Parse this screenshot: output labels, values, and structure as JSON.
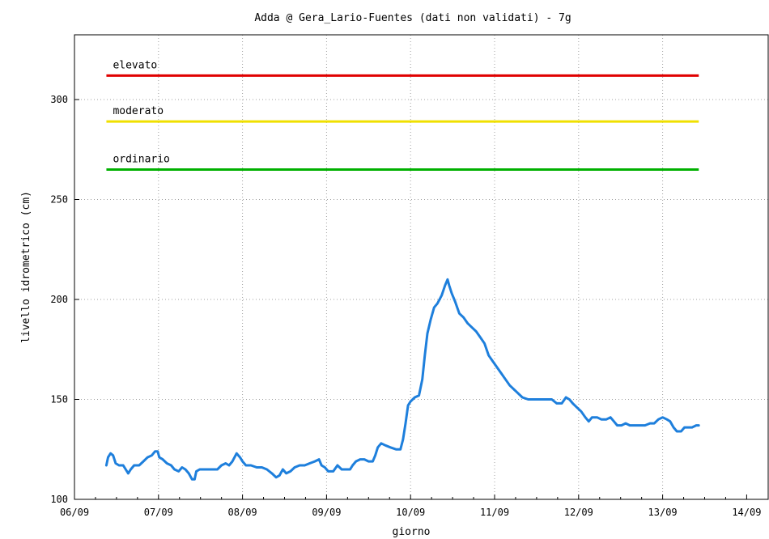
{
  "chart_data": {
    "type": "line",
    "title": "Adda @  Gera_Lario-Fuentes (dati non validati) - 7g",
    "xlabel": "giorno",
    "ylabel": "livello idrometrico (cm)",
    "xlim": [
      0,
      8
    ],
    "ylim": [
      100,
      330
    ],
    "x_ticks": [
      "06/09",
      "07/09",
      "08/09",
      "09/09",
      "10/09",
      "11/09",
      "12/09",
      "13/09",
      "14/09"
    ],
    "y_ticks": [
      100,
      150,
      200,
      250,
      300
    ],
    "grid": true,
    "thresholds": [
      {
        "name": "elevato",
        "value": 312,
        "color": "#e00000"
      },
      {
        "name": "moderato",
        "value": 289,
        "color": "#f0e000"
      },
      {
        "name": "ordinario",
        "value": 265,
        "color": "#00b000"
      }
    ],
    "threshold_span": [
      0.38,
      7.43
    ],
    "series": [
      {
        "color": "#1e7fdc",
        "points": [
          [
            0.38,
            117
          ],
          [
            0.4,
            121
          ],
          [
            0.43,
            123
          ],
          [
            0.46,
            122
          ],
          [
            0.49,
            118
          ],
          [
            0.53,
            117
          ],
          [
            0.58,
            117
          ],
          [
            0.61,
            115
          ],
          [
            0.64,
            113
          ],
          [
            0.67,
            115
          ],
          [
            0.71,
            117
          ],
          [
            0.77,
            117
          ],
          [
            0.82,
            119
          ],
          [
            0.87,
            121
          ],
          [
            0.92,
            122
          ],
          [
            0.96,
            124
          ],
          [
            0.99,
            124
          ],
          [
            1.01,
            121
          ],
          [
            1.05,
            120
          ],
          [
            1.1,
            118
          ],
          [
            1.15,
            117
          ],
          [
            1.19,
            115
          ],
          [
            1.24,
            114
          ],
          [
            1.28,
            116
          ],
          [
            1.32,
            115
          ],
          [
            1.36,
            113
          ],
          [
            1.4,
            110
          ],
          [
            1.43,
            110
          ],
          [
            1.45,
            114
          ],
          [
            1.49,
            115
          ],
          [
            1.55,
            115
          ],
          [
            1.62,
            115
          ],
          [
            1.7,
            115
          ],
          [
            1.75,
            117
          ],
          [
            1.8,
            118
          ],
          [
            1.84,
            117
          ],
          [
            1.88,
            119
          ],
          [
            1.93,
            123
          ],
          [
            1.97,
            121
          ],
          [
            2.0,
            119
          ],
          [
            2.04,
            117
          ],
          [
            2.1,
            117
          ],
          [
            2.17,
            116
          ],
          [
            2.23,
            116
          ],
          [
            2.29,
            115
          ],
          [
            2.35,
            113
          ],
          [
            2.4,
            111
          ],
          [
            2.44,
            112
          ],
          [
            2.48,
            115
          ],
          [
            2.52,
            113
          ],
          [
            2.57,
            114
          ],
          [
            2.62,
            116
          ],
          [
            2.68,
            117
          ],
          [
            2.74,
            117
          ],
          [
            2.8,
            118
          ],
          [
            2.86,
            119
          ],
          [
            2.91,
            120
          ],
          [
            2.94,
            117
          ],
          [
            2.98,
            116
          ],
          [
            3.02,
            114
          ],
          [
            3.08,
            114
          ],
          [
            3.13,
            117
          ],
          [
            3.18,
            115
          ],
          [
            3.24,
            115
          ],
          [
            3.28,
            115
          ],
          [
            3.31,
            117
          ],
          [
            3.35,
            119
          ],
          [
            3.4,
            120
          ],
          [
            3.45,
            120
          ],
          [
            3.5,
            119
          ],
          [
            3.55,
            119
          ],
          [
            3.58,
            122
          ],
          [
            3.61,
            126
          ],
          [
            3.65,
            128
          ],
          [
            3.7,
            127
          ],
          [
            3.76,
            126
          ],
          [
            3.83,
            125
          ],
          [
            3.88,
            125
          ],
          [
            3.91,
            130
          ],
          [
            3.94,
            138
          ],
          [
            3.97,
            147
          ],
          [
            4.0,
            149
          ],
          [
            4.05,
            151
          ],
          [
            4.1,
            152
          ],
          [
            4.14,
            160
          ],
          [
            4.17,
            172
          ],
          [
            4.2,
            183
          ],
          [
            4.24,
            190
          ],
          [
            4.28,
            196
          ],
          [
            4.32,
            198
          ],
          [
            4.37,
            202
          ],
          [
            4.41,
            207
          ],
          [
            4.44,
            210
          ],
          [
            4.46,
            207
          ],
          [
            4.49,
            203
          ],
          [
            4.53,
            199
          ],
          [
            4.58,
            193
          ],
          [
            4.63,
            191
          ],
          [
            4.68,
            188
          ],
          [
            4.73,
            186
          ],
          [
            4.78,
            184
          ],
          [
            4.83,
            181
          ],
          [
            4.88,
            178
          ],
          [
            4.93,
            172
          ],
          [
            4.98,
            169
          ],
          [
            5.03,
            166
          ],
          [
            5.08,
            163
          ],
          [
            5.13,
            160
          ],
          [
            5.18,
            157
          ],
          [
            5.23,
            155
          ],
          [
            5.28,
            153
          ],
          [
            5.33,
            151
          ],
          [
            5.4,
            150
          ],
          [
            5.48,
            150
          ],
          [
            5.55,
            150
          ],
          [
            5.62,
            150
          ],
          [
            5.68,
            150
          ],
          [
            5.74,
            148
          ],
          [
            5.8,
            148
          ],
          [
            5.85,
            151
          ],
          [
            5.89,
            150
          ],
          [
            5.93,
            148
          ],
          [
            5.98,
            146
          ],
          [
            6.03,
            144
          ],
          [
            6.08,
            141
          ],
          [
            6.12,
            139
          ],
          [
            6.16,
            141
          ],
          [
            6.22,
            141
          ],
          [
            6.27,
            140
          ],
          [
            6.33,
            140
          ],
          [
            6.38,
            141
          ],
          [
            6.42,
            139
          ],
          [
            6.46,
            137
          ],
          [
            6.51,
            137
          ],
          [
            6.56,
            138
          ],
          [
            6.61,
            137
          ],
          [
            6.67,
            137
          ],
          [
            6.73,
            137
          ],
          [
            6.79,
            137
          ],
          [
            6.85,
            138
          ],
          [
            6.9,
            138
          ],
          [
            6.95,
            140
          ],
          [
            7.0,
            141
          ],
          [
            7.05,
            140
          ],
          [
            7.09,
            139
          ],
          [
            7.13,
            136
          ],
          [
            7.17,
            134
          ],
          [
            7.22,
            134
          ],
          [
            7.26,
            136
          ],
          [
            7.3,
            136
          ],
          [
            7.35,
            136
          ],
          [
            7.4,
            137
          ],
          [
            7.43,
            137
          ]
        ]
      }
    ]
  }
}
